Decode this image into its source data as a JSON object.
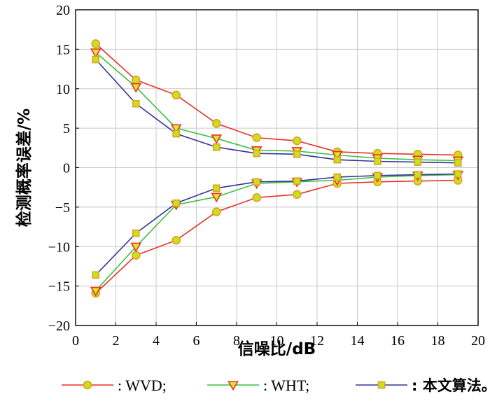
{
  "chart_data": {
    "type": "line",
    "xlabel": "信噪比/dB",
    "ylabel": "检测概率误差/%",
    "xlim": [
      0,
      20
    ],
    "ylim": [
      -20,
      20
    ],
    "xticks": [
      0,
      2,
      4,
      6,
      8,
      10,
      12,
      14,
      16,
      18,
      20
    ],
    "yticks": [
      -20,
      -15,
      -10,
      -5,
      0,
      5,
      10,
      15,
      20
    ],
    "grid": true,
    "legend_position": "bottom",
    "x": [
      1,
      3,
      5,
      7,
      9,
      11,
      13,
      15,
      17,
      19
    ],
    "series": [
      {
        "name": ": WVD;",
        "line_color": "#e8302a",
        "marker": "circle",
        "marker_fill": "#c8e020",
        "marker_stroke": "#e0a020",
        "upper": [
          15.7,
          11.1,
          9.2,
          5.6,
          3.8,
          3.4,
          2.0,
          1.8,
          1.7,
          1.6
        ],
        "lower": [
          -15.9,
          -11.1,
          -9.2,
          -5.6,
          -3.8,
          -3.4,
          -2.0,
          -1.8,
          -1.7,
          -1.6
        ]
      },
      {
        "name": ": WHT;",
        "line_color": "#3fbf3f",
        "marker": "triangle-down",
        "marker_fill": "#d8e828",
        "marker_stroke": "#e8302a",
        "upper": [
          14.6,
          10.2,
          5.0,
          3.7,
          2.2,
          2.1,
          1.6,
          1.2,
          1.0,
          0.9
        ],
        "lower": [
          -15.6,
          -10.0,
          -4.7,
          -3.7,
          -2.0,
          -1.8,
          -1.6,
          -1.2,
          -1.0,
          -0.9
        ]
      },
      {
        "name": ": 本文算法。",
        "line_color": "#333399",
        "marker": "square",
        "marker_fill": "#c8e020",
        "marker_stroke": "#e0a020",
        "upper": [
          13.7,
          8.1,
          4.3,
          2.6,
          1.8,
          1.7,
          1.0,
          0.8,
          0.7,
          0.6
        ],
        "lower": [
          -13.6,
          -8.3,
          -4.5,
          -2.6,
          -1.8,
          -1.7,
          -1.2,
          -1.0,
          -0.9,
          -0.8
        ]
      }
    ]
  }
}
